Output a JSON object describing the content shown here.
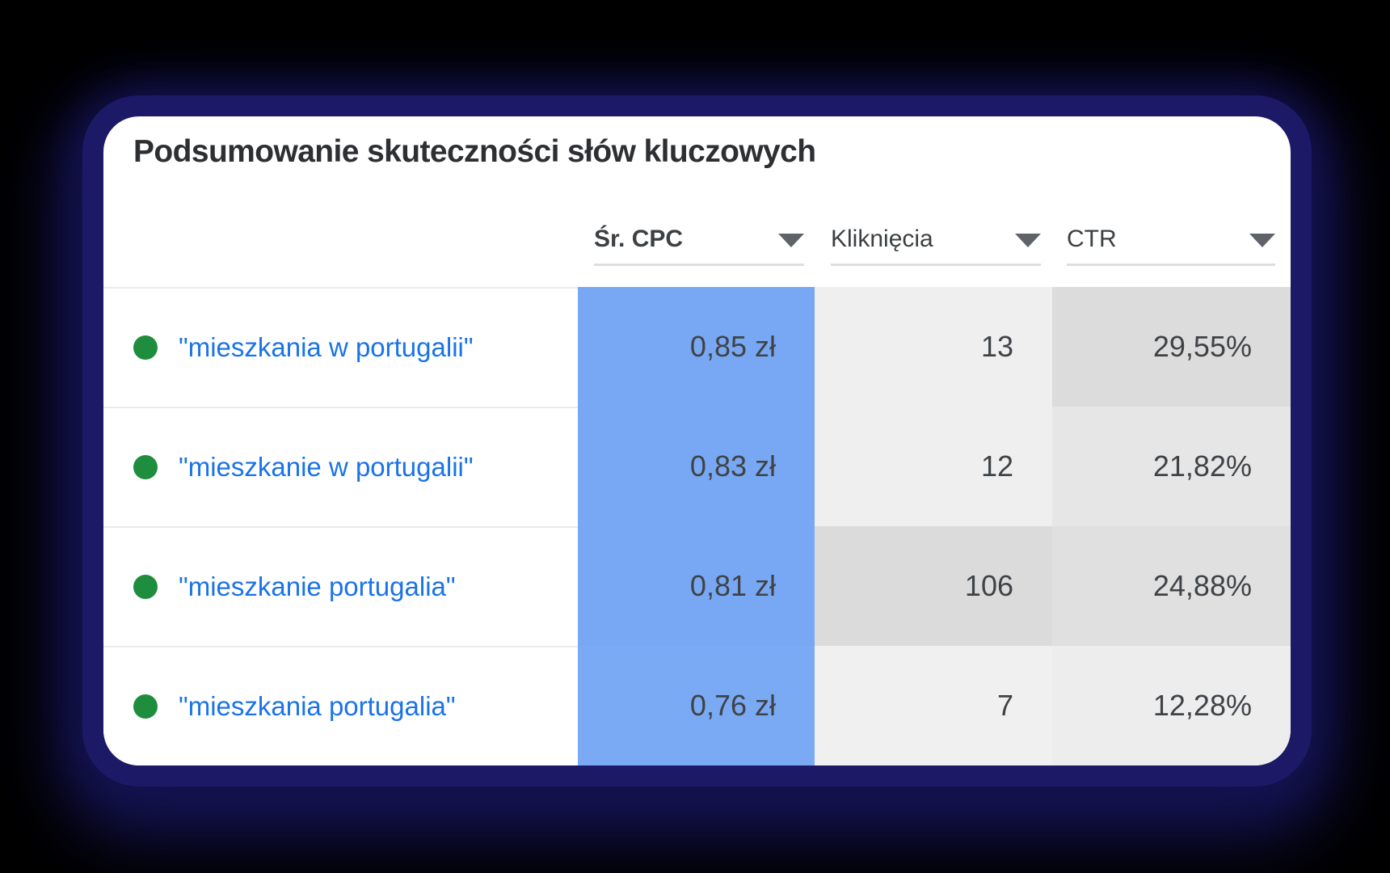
{
  "card": {
    "title": "Podsumowanie skuteczności słów kluczowych"
  },
  "table": {
    "columns": [
      {
        "label": "Śr. CPC",
        "sorted": true,
        "sort_icon": "chevron-down"
      },
      {
        "label": "Kliknięcia",
        "sorted": false,
        "sort_icon": "chevron-down"
      },
      {
        "label": "CTR",
        "sorted": false,
        "sort_icon": "chevron-down"
      }
    ],
    "rows": [
      {
        "status": "enabled",
        "keyword": "\"mieszkania w portugalii\"",
        "cpc": "0,85 zł",
        "clicks": "13",
        "ctr": "29,55%",
        "cpc_bg": "#78a8f3",
        "clicks_bg": "#efefef",
        "ctr_bg": "#dcdcdc"
      },
      {
        "status": "enabled",
        "keyword": "\"mieszkanie w portugalii\"",
        "cpc": "0,83 zł",
        "clicks": "12",
        "ctr": "21,82%",
        "cpc_bg": "#78a8f3",
        "clicks_bg": "#efefef",
        "ctr_bg": "#e6e6e6"
      },
      {
        "status": "enabled",
        "keyword": "\"mieszkanie portugalia\"",
        "cpc": "0,81 zł",
        "clicks": "106",
        "ctr": "24,88%",
        "cpc_bg": "#78a8f3",
        "clicks_bg": "#dbdbdb",
        "ctr_bg": "#e0e0e0"
      },
      {
        "status": "enabled",
        "keyword": "\"mieszkania portugalia\"",
        "cpc": "0,76 zł",
        "clicks": "7",
        "ctr": "12,28%",
        "cpc_bg": "#7aaaf4",
        "clicks_bg": "#f0f0f0",
        "ctr_bg": "#ededed"
      }
    ]
  },
  "colors": {
    "cpc_column_accent": "#78a8f3",
    "keyword_link": "#1a73e8",
    "status_enabled_green": "#1e8e3e",
    "card_glow_navy": "#1c1a66",
    "page_background": "#000000",
    "header_text": "#3c4043",
    "value_text": "#3f4347"
  }
}
